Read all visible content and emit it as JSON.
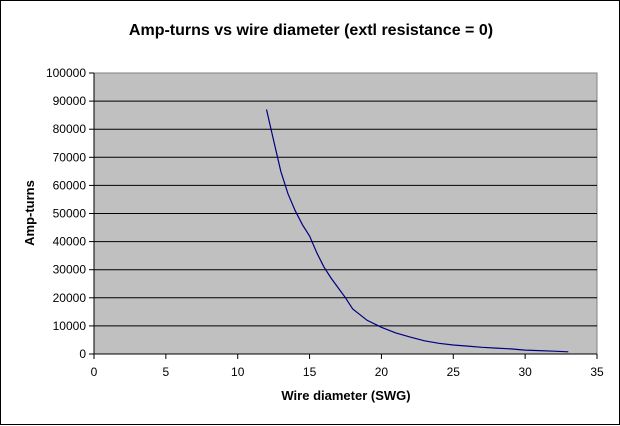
{
  "chart_data": {
    "type": "line",
    "title": "Amp-turns vs wire diameter (extl resistance = 0)",
    "xlabel": "Wire diameter (SWG)",
    "ylabel": "Amp-turns",
    "xlim": [
      0,
      35
    ],
    "ylim": [
      0,
      100000
    ],
    "x_ticks": [
      0,
      5,
      10,
      15,
      20,
      25,
      30,
      35
    ],
    "y_ticks": [
      0,
      10000,
      20000,
      30000,
      40000,
      50000,
      60000,
      70000,
      80000,
      90000,
      100000
    ],
    "grid": "horizontal",
    "legend": "none",
    "colors": {
      "plot_area": "#c0c0c0",
      "line": "#000080",
      "gridline": "#000000"
    },
    "series": [
      {
        "x": [
          12,
          12.5,
          13,
          13.5,
          14,
          14.5,
          15,
          15.5,
          16,
          16.5,
          17,
          17.5,
          18,
          19,
          20,
          21,
          22,
          23,
          24,
          25,
          26,
          27,
          28,
          29,
          30,
          31,
          32,
          33
        ],
        "y": [
          87000,
          76000,
          65000,
          57000,
          51000,
          46000,
          42000,
          36000,
          31000,
          27000,
          23500,
          20000,
          16000,
          12000,
          9500,
          7500,
          6000,
          4700,
          3800,
          3200,
          2800,
          2400,
          2100,
          1800,
          1400,
          1200,
          1000,
          800
        ]
      }
    ]
  }
}
